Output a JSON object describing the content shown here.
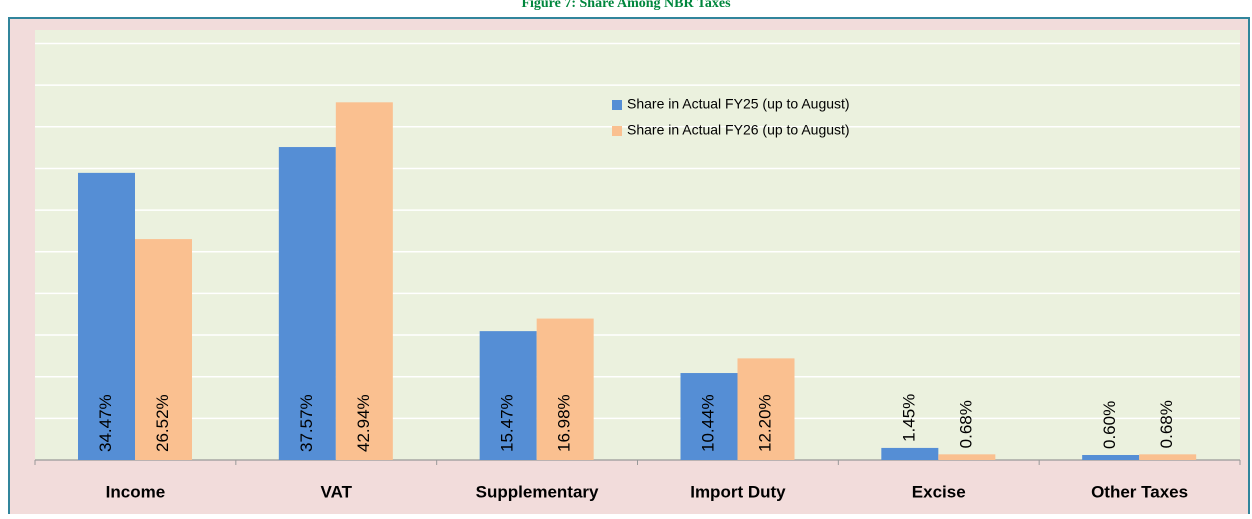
{
  "chart_data": {
    "type": "bar",
    "title": "Figure 7: Share Among NBR Taxes",
    "categories": [
      "Income",
      "VAT",
      "Supplementary",
      "Import Duty",
      "Excise",
      "Other Taxes"
    ],
    "series": [
      {
        "name": "Share in Actual FY25 (up to August)",
        "color": "#558ed5",
        "values": [
          34.47,
          37.57,
          15.47,
          10.44,
          1.45,
          0.6
        ],
        "value_labels": [
          "34.47%",
          "37.57%",
          "15.47%",
          "10.44%",
          "1.45%",
          "0.60%"
        ]
      },
      {
        "name": "Share in Actual FY26 (up to August)",
        "color": "#fac090",
        "values": [
          26.52,
          42.94,
          16.98,
          12.2,
          0.68,
          0.68
        ],
        "value_labels": [
          "26.52%",
          "42.94%",
          "16.98%",
          "12.20%",
          "0.68%",
          "0.68%"
        ]
      }
    ],
    "ylim": [
      0,
      50
    ],
    "yticks": [
      0,
      5,
      10,
      15,
      20,
      25,
      30,
      35,
      40,
      45,
      50
    ],
    "grid": true
  }
}
